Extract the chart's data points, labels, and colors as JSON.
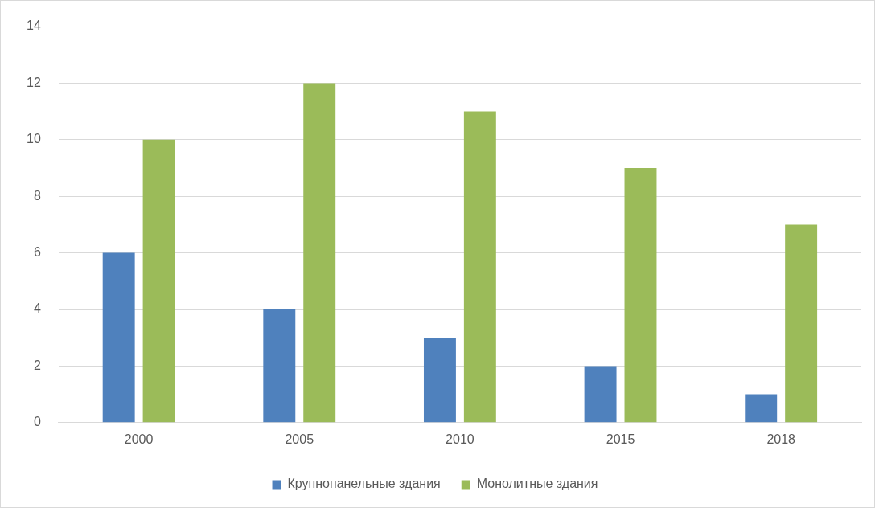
{
  "chart_data": {
    "type": "bar",
    "categories": [
      "2000",
      "2005",
      "2010",
      "2015",
      "2018"
    ],
    "series": [
      {
        "name": "Крупнопанельные здания",
        "color": "#4f81bd",
        "values": [
          6,
          4,
          3,
          2,
          1
        ]
      },
      {
        "name": "Монолитные здания",
        "color": "#9bbb59",
        "values": [
          10,
          12,
          11,
          9,
          7
        ]
      }
    ],
    "ylim": [
      0,
      14
    ],
    "yticks": [
      0,
      2,
      4,
      6,
      8,
      10,
      12,
      14
    ],
    "grid": "y",
    "legend": "bottom"
  }
}
